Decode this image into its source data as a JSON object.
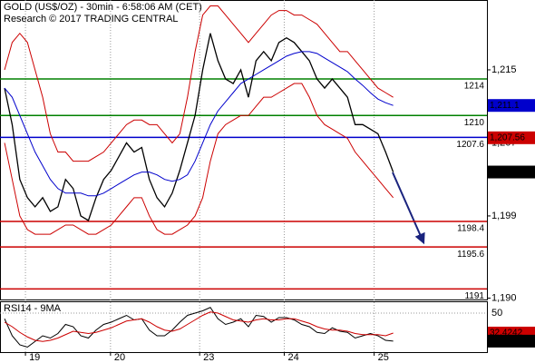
{
  "chart_data": {
    "type": "price-chart",
    "title": "GOLD (US$/OZ) - 30min - 6:58:06 AM (CET)",
    "subtitle": "Research © 2017 TRADING CENTRAL",
    "xlim": [
      -0.6,
      63.3
    ],
    "xticks": [
      {
        "value": 2.74,
        "label": "19"
      },
      {
        "value": 13.9,
        "label": "20"
      },
      {
        "value": 25.6,
        "label": "23"
      },
      {
        "value": 36.7,
        "label": "24"
      },
      {
        "value": 48.5,
        "label": "25"
      }
    ],
    "ylim": [
      1189.85,
      1222.65
    ],
    "yticks": [
      {
        "value": 1215,
        "label": "1,215"
      },
      {
        "value": 1207,
        "label": "1,207"
      },
      {
        "value": 1199,
        "label": "1,199"
      },
      {
        "value": 1190,
        "label": "1,190"
      }
    ],
    "series": [
      {
        "name": "GOLD",
        "color": "#000000",
        "values": [
          1213,
          1209,
          1203,
          1201,
          1200,
          1201,
          1199.5,
          1200,
          1203,
          1202,
          1199,
          1198.5,
          1201,
          1203,
          1204,
          1205.5,
          1207,
          1206,
          1206.5,
          1203,
          1201,
          1200,
          1201.5,
          1204,
          1207,
          1210,
          1215,
          1219,
          1216,
          1214,
          1213.5,
          1215,
          1212,
          1216,
          1217,
          1216,
          1218,
          1218.5,
          1218,
          1217,
          1216,
          1214,
          1213,
          1214,
          1213,
          1212,
          1209,
          1209,
          1208.5,
          1208,
          1206,
          1203.8
        ]
      },
      {
        "color": "#cc0000",
        "values": [
          1215,
          1218,
          1219,
          1218,
          1215,
          1212,
          1208,
          1206,
          1206,
          1205,
          1205,
          1205,
          1205.5,
          1206,
          1207,
          1208,
          1209,
          1209.5,
          1209.5,
          1209,
          1209,
          1208,
          1207,
          1208,
          1212,
          1217,
          1221,
          1222,
          1222,
          1221,
          1220,
          1219,
          1218,
          1219,
          1220,
          1221,
          1221.5,
          1221.5,
          1221,
          1221,
          1220.5,
          1220,
          1219,
          1218,
          1217,
          1217,
          1216,
          1215,
          1214,
          1213,
          1212.5,
          1212
        ]
      },
      {
        "color": "#cc0000",
        "values": [
          1207,
          1203,
          1199,
          1197.5,
          1197,
          1197,
          1197,
          1197.5,
          1198,
          1198,
          1197.5,
          1197,
          1197,
          1197.5,
          1198,
          1199,
          1200,
          1201,
          1201,
          1199,
          1197.5,
          1197,
          1197,
          1197.5,
          1198,
          1199,
          1201,
          1205,
          1208,
          1209,
          1209.5,
          1210,
          1210,
          1211,
          1212,
          1212,
          1212.5,
          1213,
          1213.5,
          1213.5,
          1212,
          1210,
          1209,
          1208.5,
          1208,
          1207.5,
          1206,
          1205,
          1204,
          1203,
          1202,
          1201
        ]
      },
      {
        "color": "#0000cc",
        "values": [
          1213,
          1212,
          1210,
          1208,
          1206,
          1204.5,
          1203,
          1202,
          1201.5,
          1201.5,
          1201.5,
          1201.2,
          1201.2,
          1201.5,
          1202,
          1202.5,
          1203,
          1203.5,
          1203.8,
          1203.8,
          1203.5,
          1203,
          1202.8,
          1203,
          1203.5,
          1205,
          1207,
          1209,
          1210.5,
          1211.5,
          1212.5,
          1213.5,
          1214,
          1214.5,
          1215,
          1215.5,
          1216,
          1216.5,
          1216.8,
          1217,
          1217,
          1216.8,
          1216.3,
          1215.8,
          1215.3,
          1214.8,
          1214,
          1213.3,
          1212.5,
          1211.8,
          1211.4,
          1211.1
        ]
      }
    ],
    "levels": [
      {
        "value": 1214,
        "color": "#008000"
      },
      {
        "value": 1210,
        "color": "#008000"
      },
      {
        "value": 1207.6,
        "color": "#0000cc"
      },
      {
        "value": 1198.4,
        "color": "#cc0000"
      },
      {
        "value": 1195.6,
        "color": "#cc0000"
      },
      {
        "value": 1191,
        "color": "#cc0000"
      }
    ],
    "last_values": [
      {
        "value": 1211.1,
        "label": "1,211.1",
        "color": "#0000cc"
      },
      {
        "value": 1207.56,
        "label": "1,207.56",
        "color": "#cc0000"
      },
      {
        "value": 1203.81,
        "label": "1,203.81",
        "color": "#000000"
      }
    ],
    "rsi": {
      "title": "RSI14 - 9MA",
      "ylim": [
        15.6,
        59.6
      ],
      "yticks": [
        50
      ],
      "series": [
        {
          "color": "#000000",
          "values": [
            45,
            30,
            22,
            20,
            25,
            30,
            28,
            32,
            40,
            38,
            30,
            28,
            35,
            40,
            42,
            45,
            48,
            44,
            45,
            35,
            30,
            30,
            35,
            42,
            48,
            50,
            52,
            55,
            45,
            40,
            42,
            45,
            38,
            48,
            47,
            42,
            46,
            46,
            44,
            40,
            38,
            33,
            32,
            37,
            34,
            33,
            28,
            30,
            32,
            30,
            26,
            25.2759
          ]
        },
        {
          "color": "#cc0000",
          "values": [
            42,
            38,
            33,
            29,
            26,
            25,
            26,
            28,
            31,
            34,
            33,
            32,
            33,
            35,
            37,
            40,
            43,
            44,
            45,
            42,
            38,
            35,
            34,
            36,
            40,
            44,
            48,
            51,
            50,
            47,
            44,
            43,
            42,
            44,
            45,
            44,
            44,
            45,
            45,
            43,
            41,
            38,
            36,
            35,
            35,
            34,
            32,
            31,
            31,
            31,
            30,
            32.4242
          ]
        }
      ],
      "last_values": [
        {
          "value": 32.4242,
          "label": "32.4242",
          "color": "#cc0000"
        },
        {
          "value": 25.2759,
          "label": "25.2759",
          "color": "#000000"
        }
      ]
    }
  }
}
